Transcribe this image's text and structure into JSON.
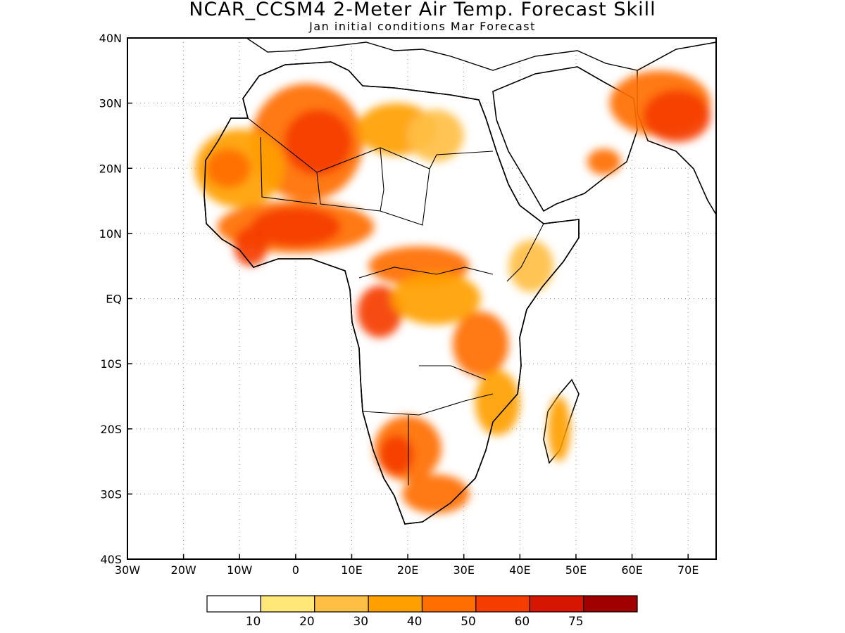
{
  "title": "NCAR_CCSM4 2-Meter Air Temp. Forecast Skill",
  "subtitle": "Jan initial conditions  Mar Forecast",
  "map": {
    "lon_range": [
      -30,
      75
    ],
    "lat_range": [
      -40,
      40
    ],
    "lon_ticks": [
      {
        "value": -30,
        "label": "30W"
      },
      {
        "value": -20,
        "label": "20W"
      },
      {
        "value": -10,
        "label": "10W"
      },
      {
        "value": 0,
        "label": "0"
      },
      {
        "value": 10,
        "label": "10E"
      },
      {
        "value": 20,
        "label": "20E"
      },
      {
        "value": 30,
        "label": "30E"
      },
      {
        "value": 40,
        "label": "40E"
      },
      {
        "value": 50,
        "label": "50E"
      },
      {
        "value": 60,
        "label": "60E"
      },
      {
        "value": 70,
        "label": "70E"
      }
    ],
    "lat_ticks": [
      {
        "value": 40,
        "label": "40N"
      },
      {
        "value": 30,
        "label": "30N"
      },
      {
        "value": 20,
        "label": "20N"
      },
      {
        "value": 10,
        "label": "10N"
      },
      {
        "value": 0,
        "label": "EQ"
      },
      {
        "value": -10,
        "label": "10S"
      },
      {
        "value": -20,
        "label": "20S"
      },
      {
        "value": -30,
        "label": "30S"
      },
      {
        "value": -40,
        "label": "40S"
      }
    ],
    "grid": true,
    "skill_regions": [
      {
        "level": 4,
        "lon": 2,
        "lat": 24,
        "rlon": 10,
        "rlat": 9
      },
      {
        "level": 5,
        "lon": 4,
        "lat": 24,
        "rlon": 6,
        "rlat": 5
      },
      {
        "level": 3,
        "lon": -10,
        "lat": 20,
        "rlon": 8,
        "rlat": 6
      },
      {
        "level": 4,
        "lon": -12,
        "lat": 20,
        "rlon": 4,
        "rlat": 3
      },
      {
        "level": 3,
        "lon": 18,
        "lat": 26,
        "rlon": 7,
        "rlat": 4
      },
      {
        "level": 2,
        "lon": 25,
        "lat": 25,
        "rlon": 5,
        "rlat": 4
      },
      {
        "level": 4,
        "lon": 0,
        "lat": 11,
        "rlon": 14,
        "rlat": 4
      },
      {
        "level": 5,
        "lon": 0,
        "lat": 11,
        "rlon": 8,
        "rlat": 3
      },
      {
        "level": 5,
        "lon": -8,
        "lat": 8,
        "rlon": 3,
        "rlat": 3
      },
      {
        "level": 4,
        "lon": 22,
        "lat": 5,
        "rlon": 9,
        "rlat": 3
      },
      {
        "level": 5,
        "lon": 15,
        "lat": -2,
        "rlon": 4,
        "rlat": 4
      },
      {
        "level": 3,
        "lon": 25,
        "lat": 0,
        "rlon": 8,
        "rlat": 4
      },
      {
        "level": 4,
        "lon": 33,
        "lat": -7,
        "rlon": 5,
        "rlat": 5
      },
      {
        "level": 2,
        "lon": 42,
        "lat": 5,
        "rlon": 4,
        "rlat": 4
      },
      {
        "level": 3,
        "lon": 36,
        "lat": -16,
        "rlon": 4,
        "rlat": 5
      },
      {
        "level": 4,
        "lon": 20,
        "lat": -23,
        "rlon": 6,
        "rlat": 5
      },
      {
        "level": 5,
        "lon": 18,
        "lat": -24,
        "rlon": 3,
        "rlat": 3
      },
      {
        "level": 4,
        "lon": 25,
        "lat": -30,
        "rlon": 6,
        "rlat": 3
      },
      {
        "level": 3,
        "lon": 47,
        "lat": -20,
        "rlon": 2,
        "rlat": 5
      },
      {
        "level": 4,
        "lon": 65,
        "lat": 30,
        "rlon": 9,
        "rlat": 5
      },
      {
        "level": 5,
        "lon": 68,
        "lat": 28,
        "rlon": 6,
        "rlat": 4
      },
      {
        "level": 4,
        "lon": 55,
        "lat": 21,
        "rlon": 3,
        "rlat": 2
      }
    ]
  },
  "colorbar": {
    "colors": [
      "#ffffff",
      "#ffe778",
      "#ffbf44",
      "#ff9f00",
      "#ff6e00",
      "#f53d00",
      "#d71600",
      "#a00000"
    ],
    "labels": [
      "10",
      "20",
      "30",
      "40",
      "50",
      "60",
      "75"
    ]
  }
}
